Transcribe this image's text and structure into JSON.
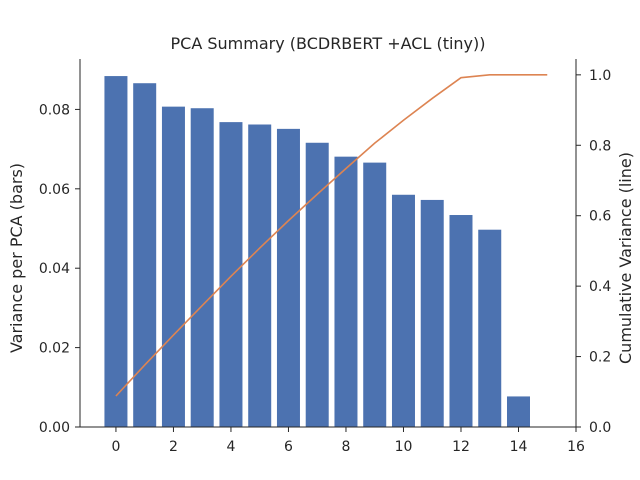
{
  "chart_data": {
    "type": "bar",
    "title": "PCA Summary (BCDRBERT +ACL (tiny))",
    "xlabel": "",
    "ylabel": "Variance per PCA (bars)",
    "y2label": "Cumulative Variance (line)",
    "xlim": [
      -1.25,
      16
    ],
    "ylim": [
      0,
      0.0927
    ],
    "y2lim": [
      0,
      1.045
    ],
    "xticks": [
      "0",
      "2",
      "4",
      "6",
      "8",
      "10",
      "12",
      "14",
      "16"
    ],
    "yticks": [
      "0.00",
      "0.02",
      "0.04",
      "0.06",
      "0.08"
    ],
    "y2ticks": [
      "0.0",
      "0.2",
      "0.4",
      "0.6",
      "0.8",
      "1.0"
    ],
    "grid": false,
    "series": [
      {
        "type": "bar",
        "color": "#4c72b0",
        "x": [
          0,
          1,
          2,
          3,
          4,
          5,
          6,
          7,
          8,
          9,
          10,
          11,
          12,
          13,
          14
        ],
        "values": [
          0.0884,
          0.0866,
          0.0807,
          0.0803,
          0.0768,
          0.0762,
          0.0751,
          0.0716,
          0.0681,
          0.0666,
          0.0585,
          0.0572,
          0.0534,
          0.0497,
          0.0077
        ]
      },
      {
        "type": "line",
        "axis": "right",
        "color": "#dd8452",
        "x": [
          0,
          1,
          2,
          3,
          4,
          5,
          6,
          7,
          8,
          9,
          10,
          11,
          12,
          13,
          14,
          15
        ],
        "values": [
          0.088,
          0.176,
          0.261,
          0.345,
          0.428,
          0.508,
          0.586,
          0.661,
          0.734,
          0.806,
          0.871,
          0.933,
          0.992,
          1.0,
          1.0,
          1.0
        ]
      }
    ]
  }
}
